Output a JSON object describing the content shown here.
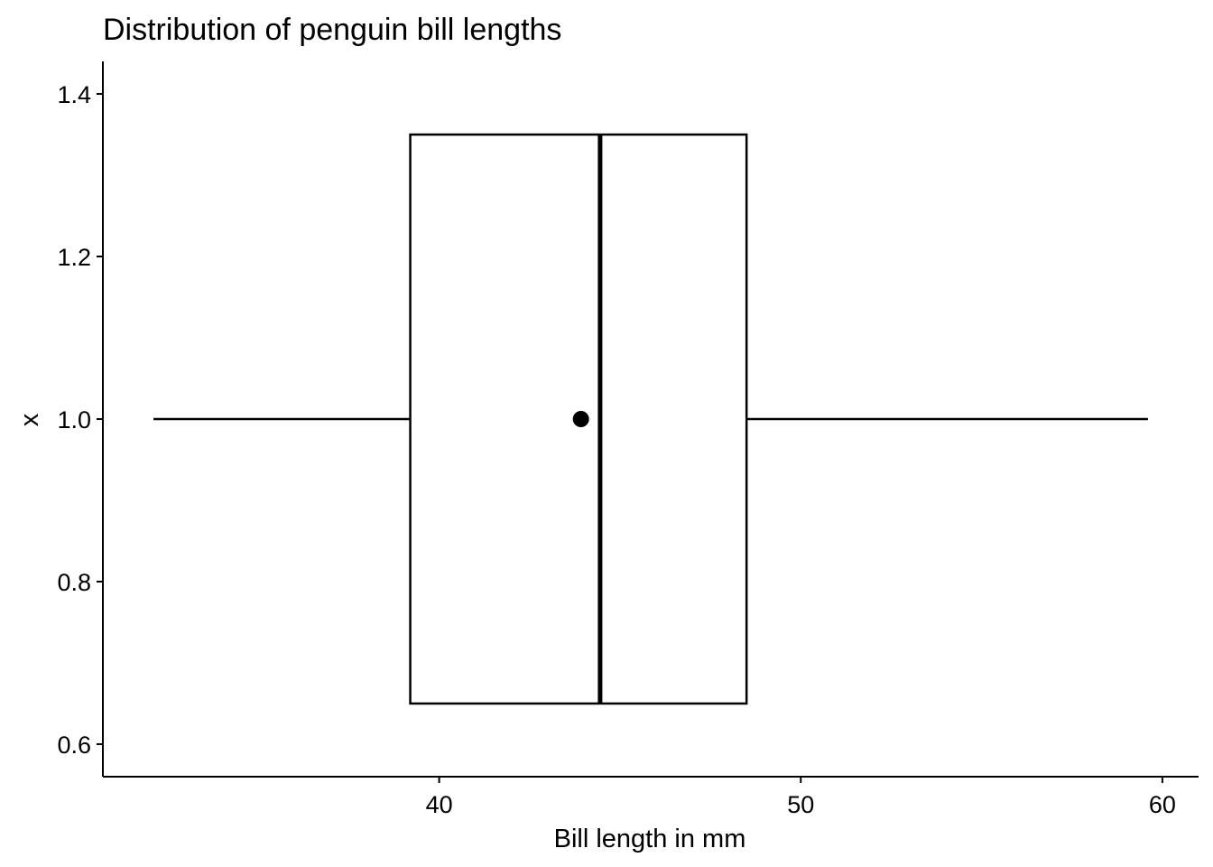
{
  "chart_data": {
    "type": "boxplot",
    "orientation": "horizontal",
    "title": "Distribution of penguin bill lengths",
    "xlabel": "Bill length in mm",
    "ylabel": "x",
    "xlim": [
      30.7,
      61.0
    ],
    "ylim": [
      0.56,
      1.44
    ],
    "xticks": [
      40,
      50,
      60
    ],
    "yticks": [
      0.6,
      0.8,
      1.0,
      1.2,
      1.4
    ],
    "ytick_labels": [
      "0.6",
      "0.8",
      "1.0",
      "1.2",
      "1.4"
    ],
    "grid": false,
    "box": {
      "y": 1.0,
      "ymin": 0.65,
      "ymax": 1.35,
      "whisker_low": 32.1,
      "q1": 39.2,
      "median": 44.45,
      "q3": 48.5,
      "whisker_high": 59.6,
      "mean": 43.92
    },
    "colors": {
      "line": "#000000",
      "fill": "#ffffff",
      "mean_point": "#000000"
    }
  }
}
